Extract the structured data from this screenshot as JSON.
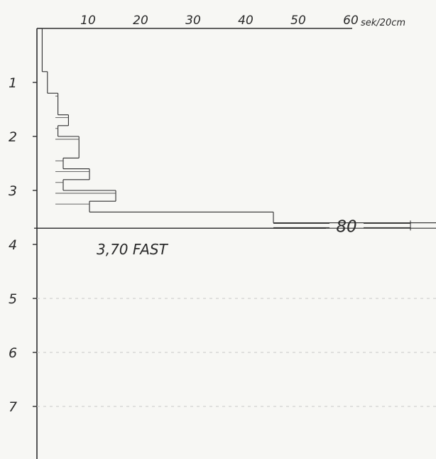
{
  "chart_data": {
    "type": "bar",
    "orientation": "horizontal-step",
    "x_axis_position": "top",
    "x_unit_label": "sek/20cm",
    "x_ticks": [
      "10",
      "20",
      "30",
      "40",
      "50",
      "60"
    ],
    "xlim": [
      0,
      60
    ],
    "y_ticks": [
      "1",
      "2",
      "3",
      "4",
      "5",
      "6",
      "7"
    ],
    "ylim": [
      0,
      8
    ],
    "series": [
      {
        "segments": [
          {
            "from": 0.0,
            "to": 0.8,
            "value": 1
          },
          {
            "from": 0.8,
            "to": 1.2,
            "value": 2
          },
          {
            "from": 1.2,
            "to": 1.6,
            "value": 4
          },
          {
            "from": 1.6,
            "to": 1.8,
            "value": 6
          },
          {
            "from": 1.8,
            "to": 2.0,
            "value": 4
          },
          {
            "from": 2.0,
            "to": 2.4,
            "value": 8
          },
          {
            "from": 2.4,
            "to": 2.6,
            "value": 5
          },
          {
            "from": 2.6,
            "to": 2.8,
            "value": 10
          },
          {
            "from": 2.8,
            "to": 3.0,
            "value": 5
          },
          {
            "from": 3.0,
            "to": 3.2,
            "value": 15
          },
          {
            "from": 3.2,
            "to": 3.4,
            "value": 10
          },
          {
            "from": 3.4,
            "to": 3.6,
            "value": 45
          },
          {
            "from": 3.6,
            "to": 3.7,
            "value": 80
          }
        ]
      }
    ],
    "overflow_label": "80",
    "stop_depth": 3.7,
    "stop_label": "3,70 FAST",
    "grid": false,
    "legend": "none"
  }
}
